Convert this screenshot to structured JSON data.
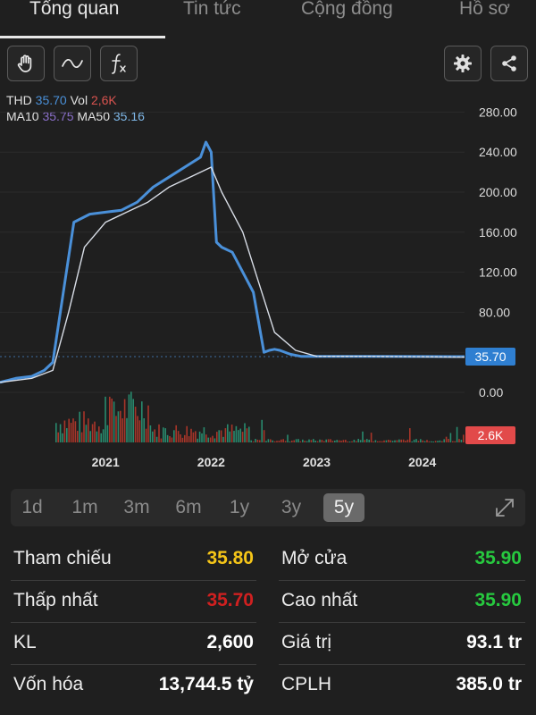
{
  "tabs": [
    "Tổng quan",
    "Tin tức",
    "Cộng đồng",
    "Hồ sơ"
  ],
  "toolbar": {
    "left": [
      "hand-icon",
      "wave-icon",
      "fx-icon"
    ],
    "right": [
      "gear-icon",
      "share-icon"
    ]
  },
  "legend": {
    "ticker": "THD",
    "price": "35.70",
    "vol_label": "Vol",
    "vol": "2,6K",
    "ma10_label": "MA10",
    "ma10": "35.75",
    "ma50_label": "MA50",
    "ma50": "35.16"
  },
  "colors": {
    "price_line": "#4a90d9",
    "ma_line": "#d8dde6",
    "up_volume": "#2a9d7c",
    "down_volume": "#c0392b",
    "up_text": "#27c93f",
    "down_text": "#d02020",
    "ref_text": "#f5c518"
  },
  "chart_data": {
    "type": "line",
    "y_ticks": [
      "280.00",
      "240.00",
      "200.00",
      "160.00",
      "120.00",
      "80.00",
      "0.00"
    ],
    "x_ticks": [
      "2021",
      "2022",
      "2023",
      "2024"
    ],
    "last_price_label": "35.70",
    "last_volume_label": "2.6K",
    "ylim": [
      0,
      280
    ],
    "series": [
      {
        "name": "THD",
        "x": [
          2020.0,
          2020.15,
          2020.3,
          2020.42,
          2020.5,
          2020.6,
          2020.7,
          2020.85,
          2021.0,
          2021.15,
          2021.3,
          2021.45,
          2021.6,
          2021.75,
          2021.9,
          2021.95,
          2022.0,
          2022.05,
          2022.1,
          2022.2,
          2022.3,
          2022.4,
          2022.5,
          2022.55,
          2022.6,
          2022.65,
          2022.75,
          2022.85,
          2023.0,
          2023.5,
          2024.0,
          2024.4
        ],
        "values": [
          10,
          14,
          16,
          22,
          30,
          100,
          170,
          178,
          180,
          182,
          190,
          205,
          215,
          225,
          235,
          250,
          240,
          150,
          145,
          140,
          120,
          100,
          40,
          42,
          43,
          42,
          38,
          36,
          36,
          36,
          35.8,
          35.7
        ]
      },
      {
        "name": "MA50",
        "x": [
          2020.0,
          2020.3,
          2020.5,
          2020.65,
          2020.8,
          2021.0,
          2021.2,
          2021.4,
          2021.6,
          2021.8,
          2022.0,
          2022.1,
          2022.3,
          2022.45,
          2022.6,
          2022.8,
          2023.0,
          2023.5,
          2024.0,
          2024.4
        ],
        "values": [
          10,
          14,
          22,
          80,
          145,
          170,
          180,
          190,
          205,
          215,
          225,
          200,
          160,
          110,
          60,
          42,
          36,
          36,
          35.5,
          35.2
        ]
      }
    ]
  },
  "stats": [
    {
      "label": "Tham chiếu",
      "value": "35.80",
      "tone": "ref"
    },
    {
      "label": "Mở cửa",
      "value": "35.90",
      "tone": "up"
    },
    {
      "label": "Thấp nhất",
      "value": "35.70",
      "tone": "down"
    },
    {
      "label": "Cao nhất",
      "value": "35.90",
      "tone": "up"
    },
    {
      "label": "KL",
      "value": "2,600",
      "tone": "plain"
    },
    {
      "label": "Giá trị",
      "value": "93.1 tr",
      "tone": "plain"
    },
    {
      "label": "Vốn hóa",
      "value": "13,744.5 tỷ",
      "tone": "plain"
    },
    {
      "label": "CPLH",
      "value": "385.0 tr",
      "tone": "plain"
    }
  ],
  "ranges": [
    "1d",
    "1m",
    "3m",
    "6m",
    "1y",
    "3y",
    "5y"
  ],
  "active_range": "5y"
}
